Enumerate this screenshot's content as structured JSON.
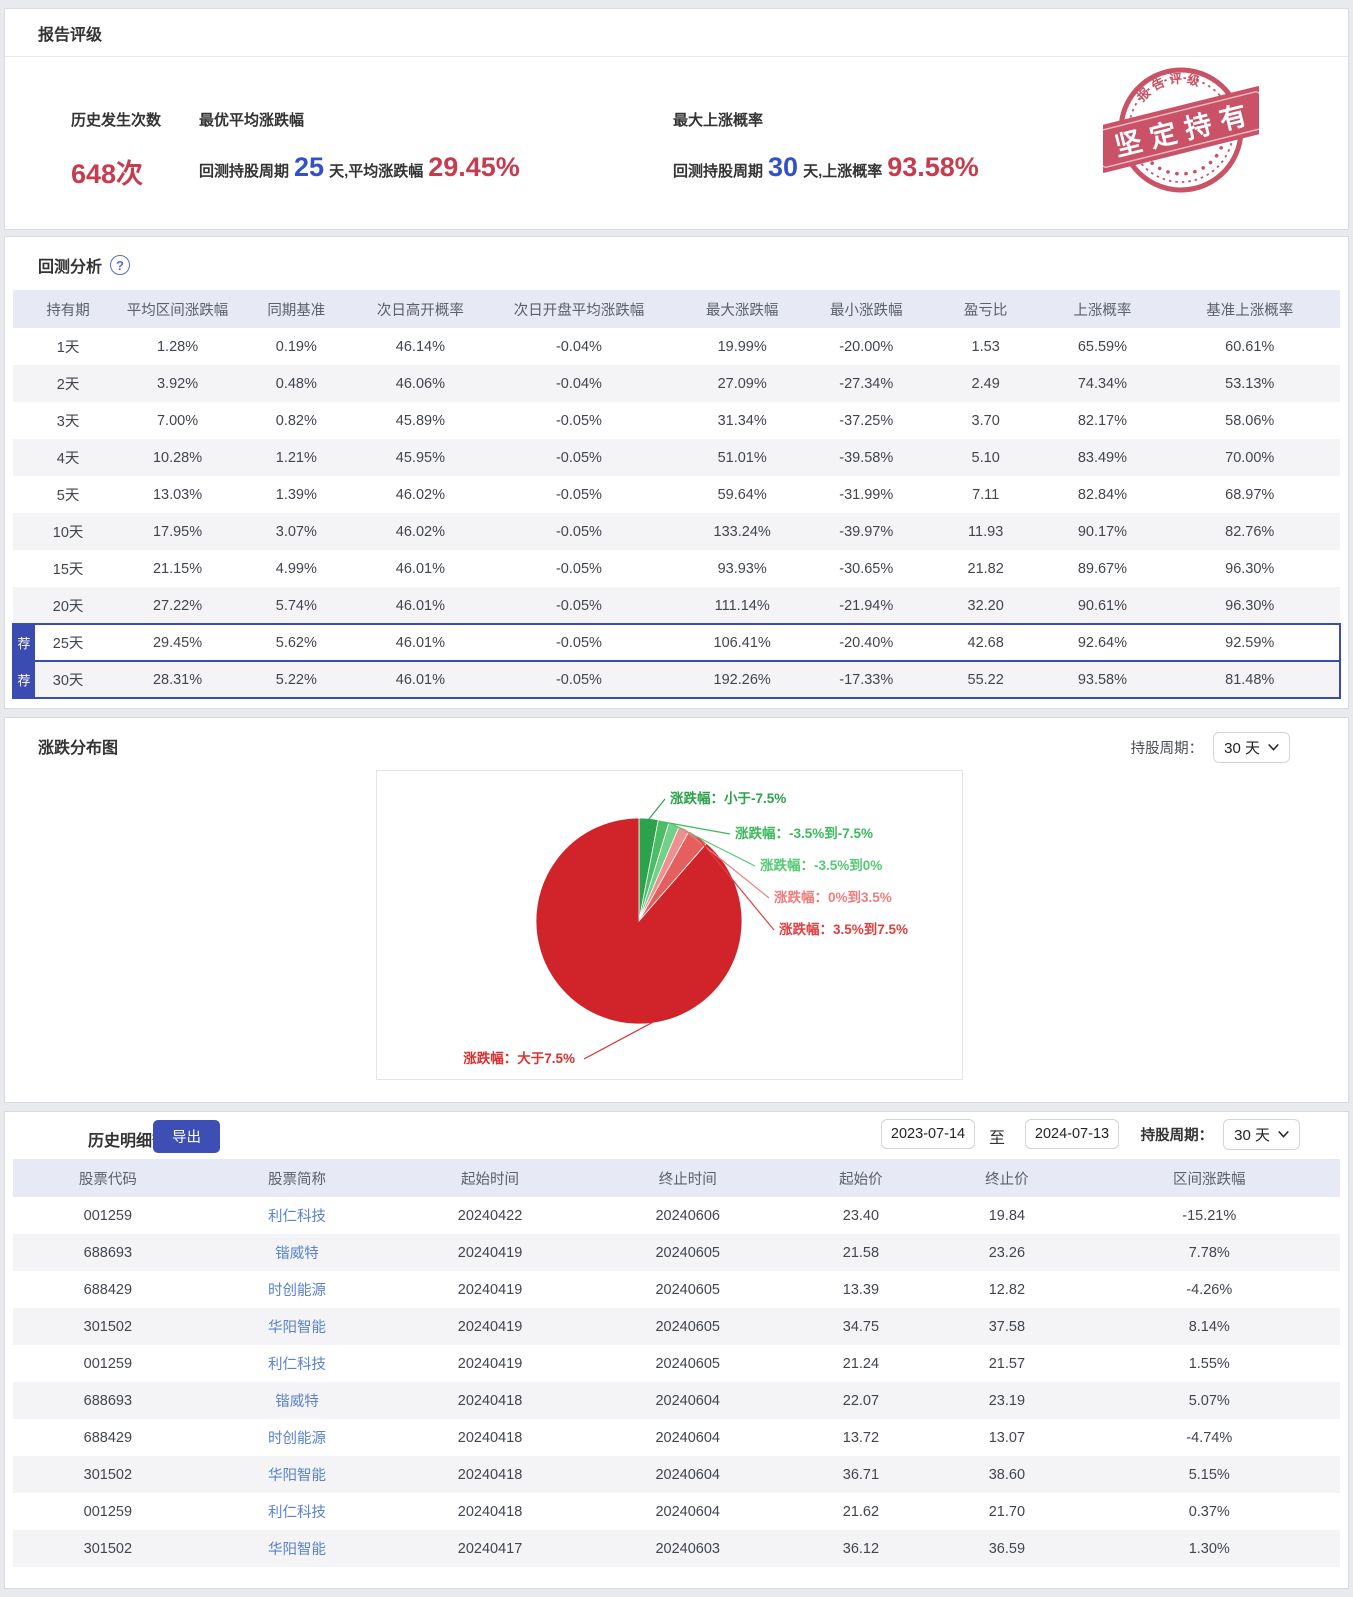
{
  "report_rating": {
    "section_title": "报告评级",
    "occurrence": {
      "label": "历史发生次数",
      "value": "648次"
    },
    "best_avg": {
      "label": "最优平均涨跌幅",
      "prefix": "回测持股周期",
      "days": "25",
      "mid": "天,平均涨跌幅",
      "value": "29.45%"
    },
    "max_prob": {
      "label": "最大上涨概率",
      "prefix": "回测持股周期",
      "days": "30",
      "mid": "天,上涨概率",
      "value": "93.58%"
    },
    "stamp": {
      "arc_text": "报告评级",
      "banner_text": "坚定持有",
      "color": "#c7495e"
    }
  },
  "backtest": {
    "section_title": "回测分析",
    "help_glyph": "?",
    "rec_badge": "荐",
    "columns": [
      "持有期",
      "平均区间涨跌幅",
      "同期基准",
      "次日高开概率",
      "次日开盘平均涨跌幅",
      "最大涨跌幅",
      "最小涨跌幅",
      "盈亏比",
      "上涨概率",
      "基准上涨概率"
    ],
    "rows": [
      {
        "recommended": false,
        "cells": [
          "1天",
          "1.28%",
          "0.19%",
          "46.14%",
          "-0.04%",
          "19.99%",
          "-20.00%",
          "1.53",
          "65.59%",
          "60.61%"
        ]
      },
      {
        "recommended": false,
        "cells": [
          "2天",
          "3.92%",
          "0.48%",
          "46.06%",
          "-0.04%",
          "27.09%",
          "-27.34%",
          "2.49",
          "74.34%",
          "53.13%"
        ]
      },
      {
        "recommended": false,
        "cells": [
          "3天",
          "7.00%",
          "0.82%",
          "45.89%",
          "-0.05%",
          "31.34%",
          "-37.25%",
          "3.70",
          "82.17%",
          "58.06%"
        ]
      },
      {
        "recommended": false,
        "cells": [
          "4天",
          "10.28%",
          "1.21%",
          "45.95%",
          "-0.05%",
          "51.01%",
          "-39.58%",
          "5.10",
          "83.49%",
          "70.00%"
        ]
      },
      {
        "recommended": false,
        "cells": [
          "5天",
          "13.03%",
          "1.39%",
          "46.02%",
          "-0.05%",
          "59.64%",
          "-31.99%",
          "7.11",
          "82.84%",
          "68.97%"
        ]
      },
      {
        "recommended": false,
        "cells": [
          "10天",
          "17.95%",
          "3.07%",
          "46.02%",
          "-0.05%",
          "133.24%",
          "-39.97%",
          "11.93",
          "90.17%",
          "82.76%"
        ]
      },
      {
        "recommended": false,
        "cells": [
          "15天",
          "21.15%",
          "4.99%",
          "46.01%",
          "-0.05%",
          "93.93%",
          "-30.65%",
          "21.82",
          "89.67%",
          "96.30%"
        ]
      },
      {
        "recommended": false,
        "cells": [
          "20天",
          "27.22%",
          "5.74%",
          "46.01%",
          "-0.05%",
          "111.14%",
          "-21.94%",
          "32.20",
          "90.61%",
          "96.30%"
        ]
      },
      {
        "recommended": true,
        "cells": [
          "25天",
          "29.45%",
          "5.62%",
          "46.01%",
          "-0.05%",
          "106.41%",
          "-20.40%",
          "42.68",
          "92.64%",
          "92.59%"
        ]
      },
      {
        "recommended": true,
        "cells": [
          "30天",
          "28.31%",
          "5.22%",
          "46.01%",
          "-0.05%",
          "192.26%",
          "-17.33%",
          "55.22",
          "93.58%",
          "81.48%"
        ]
      }
    ]
  },
  "distribution": {
    "section_title": "涨跌分布图",
    "period_label": "持股周期：",
    "period_value": "30 天"
  },
  "chart_data": {
    "type": "pie",
    "title": "涨跌分布图",
    "holding_period": "30 天",
    "labels": [
      "涨跌幅：小于-7.5%",
      "涨跌幅：-3.5%到-7.5%",
      "涨跌幅：-3.5%到0%",
      "涨跌幅：0%到3.5%",
      "涨跌幅：3.5%到7.5%",
      "涨跌幅：大于7.5%"
    ],
    "values": [
      3.0,
      1.7,
      1.7,
      1.7,
      3.3,
      88.6
    ],
    "values_note": "percent of samples, estimated from slice angles; red slices total ~93.6% matching 上涨概率 93.58%",
    "colors": [
      "#2ba24b",
      "#4cbd66",
      "#73cf89",
      "#ef9090",
      "#e65f5f",
      "#d0242a"
    ],
    "label_colors": [
      "#2ba24b",
      "#3cba5c",
      "#56c974",
      "#ee7e7e",
      "#e23e3e",
      "#db2f2f"
    ],
    "legend_position": "callout-labels"
  },
  "history": {
    "section_title": "历史明细查询",
    "export_label": "导出",
    "date_from": "2023-07-14",
    "date_separator": "至",
    "date_to": "2024-07-13",
    "period_label": "持股周期：",
    "period_value": "30 天",
    "columns": [
      "股票代码",
      "股票简称",
      "起始时间",
      "终止时间",
      "起始价",
      "终止价",
      "区间涨跌幅"
    ],
    "rows": [
      {
        "code": "001259",
        "name": "利仁科技",
        "start": "20240422",
        "end": "20240606",
        "start_price": "23.40",
        "end_price": "19.84",
        "change": "-15.21%"
      },
      {
        "code": "688693",
        "name": "锴威特",
        "start": "20240419",
        "end": "20240605",
        "start_price": "21.58",
        "end_price": "23.26",
        "change": "7.78%"
      },
      {
        "code": "688429",
        "name": "时创能源",
        "start": "20240419",
        "end": "20240605",
        "start_price": "13.39",
        "end_price": "12.82",
        "change": "-4.26%"
      },
      {
        "code": "301502",
        "name": "华阳智能",
        "start": "20240419",
        "end": "20240605",
        "start_price": "34.75",
        "end_price": "37.58",
        "change": "8.14%"
      },
      {
        "code": "001259",
        "name": "利仁科技",
        "start": "20240419",
        "end": "20240605",
        "start_price": "21.24",
        "end_price": "21.57",
        "change": "1.55%"
      },
      {
        "code": "688693",
        "name": "锴威特",
        "start": "20240418",
        "end": "20240604",
        "start_price": "22.07",
        "end_price": "23.19",
        "change": "5.07%"
      },
      {
        "code": "688429",
        "name": "时创能源",
        "start": "20240418",
        "end": "20240604",
        "start_price": "13.72",
        "end_price": "13.07",
        "change": "-4.74%"
      },
      {
        "code": "301502",
        "name": "华阳智能",
        "start": "20240418",
        "end": "20240604",
        "start_price": "36.71",
        "end_price": "38.60",
        "change": "5.15%"
      },
      {
        "code": "001259",
        "name": "利仁科技",
        "start": "20240418",
        "end": "20240604",
        "start_price": "21.62",
        "end_price": "21.70",
        "change": "0.37%"
      },
      {
        "code": "301502",
        "name": "华阳智能",
        "start": "20240417",
        "end": "20240603",
        "start_price": "36.12",
        "end_price": "36.59",
        "change": "1.30%"
      }
    ]
  }
}
